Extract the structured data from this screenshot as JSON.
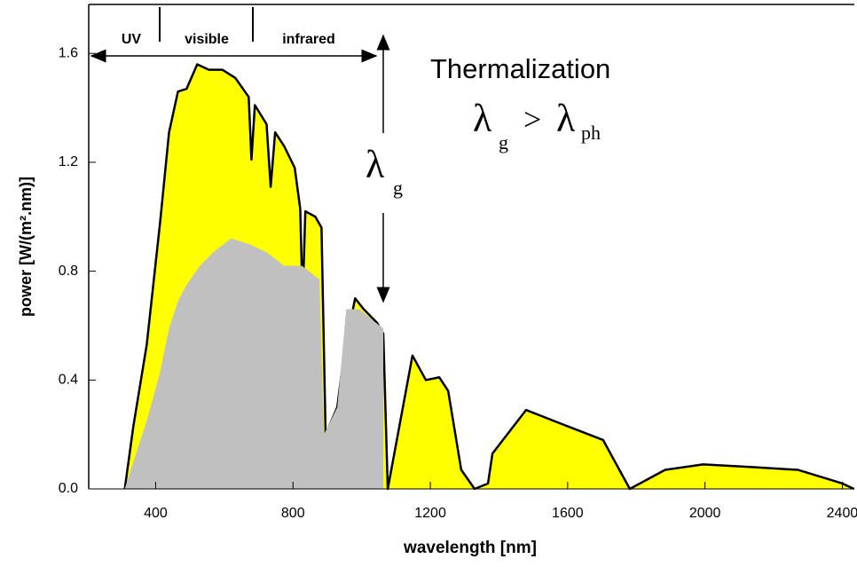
{
  "chart_data": {
    "type": "area",
    "ylabel": "power [W/(m².nm)]",
    "xlabel": "wavelength [nm]",
    "xlim": [
      205,
      2435
    ],
    "ylim": [
      0,
      1.78
    ],
    "xticks": [
      400,
      800,
      1200,
      1600,
      2000,
      2400
    ],
    "yticks": [
      {
        "value": 0,
        "label": "0.0"
      },
      0.4,
      0.8,
      1.2,
      1.6
    ],
    "series": [
      {
        "color": "#ffff00",
        "outline": "#000000",
        "x": [
          310,
          335,
          374,
          413,
          439,
          465,
          490,
          521,
          555,
          594,
          632,
          671,
          679,
          689,
          723,
          735,
          748,
          774,
          805,
          821,
          828,
          836,
          865,
          883,
          895,
          929,
          942,
          960,
          981,
          1006,
          1045,
          1063,
          1076,
          1148,
          1187,
          1226,
          1252,
          1290,
          1329,
          1368,
          1381,
          1479,
          1600,
          1703,
          1781,
          1884,
          1995,
          2142,
          2271,
          2400,
          2434
        ],
        "values": [
          0,
          0.23,
          0.53,
          0.98,
          1.31,
          1.46,
          1.47,
          1.56,
          1.54,
          1.54,
          1.51,
          1.44,
          1.21,
          1.41,
          1.34,
          1.11,
          1.31,
          1.26,
          1.18,
          1.03,
          0.69,
          1.02,
          1.0,
          0.96,
          0.2,
          0.3,
          0.43,
          0.57,
          0.7,
          0.66,
          0.61,
          0.57,
          0,
          0.49,
          0.4,
          0.41,
          0.36,
          0.07,
          0,
          0.02,
          0.13,
          0.29,
          0.23,
          0.18,
          0,
          0.07,
          0.09,
          0.08,
          0.07,
          0.02,
          0
        ]
      },
      {
        "color": "#c0c0c0",
        "x": [
          310,
          335,
          374,
          413,
          439,
          465,
          490,
          529,
          568,
          619,
          671,
          723,
          774,
          826,
          877,
          890,
          929,
          955,
          994,
          1032,
          1063,
          1063
        ],
        "values": [
          0,
          0.1,
          0.25,
          0.43,
          0.59,
          0.69,
          0.75,
          0.82,
          0.87,
          0.92,
          0.9,
          0.87,
          0.82,
          0.82,
          0.77,
          0.2,
          0.3,
          0.66,
          0.66,
          0.62,
          0.59,
          0
        ]
      }
    ],
    "bands": [
      "UV",
      "visible",
      "infrared"
    ],
    "annotation": "Thermalization",
    "gap_label": {
      "symbol": "λ",
      "subscript": "g"
    },
    "inequality": {
      "left": "λ",
      "left_sub": "g",
      "op": ">",
      "right": "λ",
      "right_sub": "ph"
    }
  }
}
